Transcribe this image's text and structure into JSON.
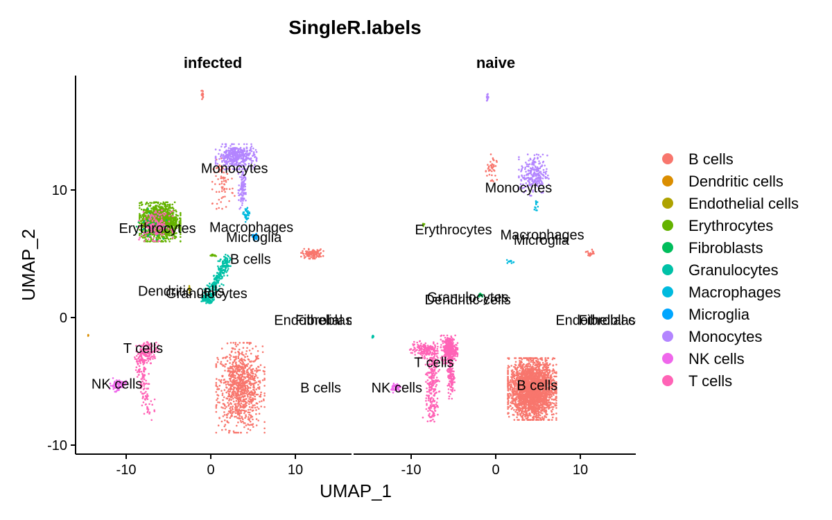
{
  "chart_data": {
    "type": "scatter",
    "title": "SingleR.labels",
    "xlabel": "UMAP_1",
    "ylabel": "UMAP_2",
    "xlim": [
      -15.5,
      16.5
    ],
    "ylim": [
      -10.3,
      19
    ],
    "xticks": [
      -10,
      0,
      10
    ],
    "yticks": [
      -10,
      0,
      10
    ],
    "grid": false,
    "legend_position": "right",
    "legend": [
      {
        "name": "B cells",
        "color": "#F8766D"
      },
      {
        "name": "Dendritic cells",
        "color": "#DB8E00"
      },
      {
        "name": "Endothelial cells",
        "color": "#AEA200"
      },
      {
        "name": "Erythrocytes",
        "color": "#64B200"
      },
      {
        "name": "Fibroblasts",
        "color": "#00BD5C"
      },
      {
        "name": "Granulocytes",
        "color": "#00C1A7"
      },
      {
        "name": "Macrophages",
        "color": "#00BADE"
      },
      {
        "name": "Microglia",
        "color": "#00A6FF"
      },
      {
        "name": "Monocytes",
        "color": "#B385FF"
      },
      {
        "name": "NK cells",
        "color": "#EF67EB"
      },
      {
        "name": "T cells",
        "color": "#FF63B6"
      }
    ],
    "panels": [
      {
        "name": "infected",
        "clusters": [
          {
            "type": "B cells",
            "center": [
              3.5,
              -5.5
            ],
            "spread": [
              2.6,
              3.2
            ],
            "count": 900,
            "shape": "blob"
          },
          {
            "type": "B cells",
            "center": [
              12.0,
              5.0
            ],
            "spread": [
              1.2,
              0.35
            ],
            "count": 120,
            "shape": "blob"
          },
          {
            "type": "B cells",
            "center": [
              -1.0,
              17.5
            ],
            "spread": [
              0.12,
              0.35
            ],
            "count": 18,
            "shape": "blob"
          },
          {
            "type": "B cells",
            "center": [
              1.5,
              10.5
            ],
            "spread": [
              1.2,
              1.8
            ],
            "count": 70,
            "shape": "blob"
          },
          {
            "type": "Monocytes",
            "center": [
              3.0,
              12.6
            ],
            "spread": [
              2.2,
              0.9
            ],
            "count": 380,
            "shape": "blob"
          },
          {
            "type": "Monocytes",
            "center": [
              3.7,
              10.0
            ],
            "spread": [
              0.4,
              1.6
            ],
            "count": 90,
            "shape": "blob"
          },
          {
            "type": "Erythrocytes",
            "center": [
              -6.0,
              7.5
            ],
            "spread": [
              2.2,
              1.4
            ],
            "count": 1400,
            "shape": "blob"
          },
          {
            "type": "Fibroblasts",
            "center": [
              -7.0,
              7.3
            ],
            "spread": [
              1.6,
              1.1
            ],
            "count": 60,
            "shape": "blob"
          },
          {
            "type": "T cells",
            "center": [
              -6.5,
              7.2
            ],
            "spread": [
              1.8,
              1.1
            ],
            "count": 160,
            "shape": "blob"
          },
          {
            "type": "Macrophages",
            "center": [
              4.2,
              8.0
            ],
            "spread": [
              0.35,
              0.6
            ],
            "count": 40,
            "shape": "blob"
          },
          {
            "type": "Microglia",
            "center": [
              5.2,
              6.3
            ],
            "spread": [
              0.35,
              0.25
            ],
            "count": 40,
            "shape": "blob"
          },
          {
            "type": "Granulocytes",
            "from": [
              2.0,
              4.5
            ],
            "to": [
              -0.5,
              1.5
            ],
            "spread": 0.45,
            "count": 260,
            "shape": "arc"
          },
          {
            "type": "Granulocytes",
            "center": [
              -0.4,
              1.4
            ],
            "spread": [
              0.8,
              0.25
            ],
            "count": 60,
            "shape": "blob"
          },
          {
            "type": "Erythrocytes",
            "center": [
              0.3,
              4.9
            ],
            "spread": [
              0.3,
              0.12
            ],
            "count": 10,
            "shape": "blob"
          },
          {
            "type": "Endothelial cells",
            "center": [
              -2.5,
              2.2
            ],
            "spread": [
              0.15,
              0.3
            ],
            "count": 10,
            "shape": "blob"
          },
          {
            "type": "Dendritic cells",
            "center": [
              -14.5,
              -1.4
            ],
            "spread": [
              0.08,
              0.08
            ],
            "count": 3,
            "shape": "blob"
          },
          {
            "type": "T cells",
            "center": [
              -7.5,
              -2.7
            ],
            "spread": [
              1.2,
              0.8
            ],
            "count": 130,
            "shape": "blob"
          },
          {
            "type": "T cells",
            "from": [
              -8.5,
              -3.0
            ],
            "to": [
              -7.3,
              -7.5
            ],
            "spread": 0.55,
            "count": 140,
            "shape": "arc"
          },
          {
            "type": "NK cells",
            "center": [
              -11.0,
              -5.3
            ],
            "spread": [
              0.9,
              0.5
            ],
            "count": 80,
            "shape": "blob"
          }
        ],
        "labels": [
          {
            "text": "Monocytes",
            "x": 2.8,
            "y": 11.7
          },
          {
            "text": "Erythrocytes",
            "x": -6.3,
            "y": 7.0
          },
          {
            "text": "Macrophages",
            "x": 4.8,
            "y": 7.1
          },
          {
            "text": "Microglia",
            "x": 5.1,
            "y": 6.3
          },
          {
            "text": "B cells",
            "x": 4.7,
            "y": 4.6
          },
          {
            "text": "Dendritic cells",
            "x": -3.5,
            "y": 2.1
          },
          {
            "text": "Granulocytes",
            "x": -0.5,
            "y": 1.9
          },
          {
            "text": "Endothelial cells",
            "x": 13.4,
            "y": -0.2
          },
          {
            "text": "Fibroblasts",
            "x": 14.0,
            "y": -0.2
          },
          {
            "text": "T cells",
            "x": -8.0,
            "y": -2.4
          },
          {
            "text": "NK cells",
            "x": -11.1,
            "y": -5.2
          },
          {
            "text": "B cells",
            "x": 13.0,
            "y": -5.5
          }
        ]
      },
      {
        "name": "naive",
        "clusters": [
          {
            "type": "B cells",
            "center": [
              4.3,
              -5.6
            ],
            "spread": [
              2.6,
              2.2
            ],
            "count": 2600,
            "shape": "blob"
          },
          {
            "type": "B cells",
            "center": [
              11.2,
              5.0
            ],
            "spread": [
              0.6,
              0.3
            ],
            "count": 20,
            "shape": "blob"
          },
          {
            "type": "B cells",
            "center": [
              -0.5,
              11.5
            ],
            "spread": [
              0.6,
              1.3
            ],
            "count": 40,
            "shape": "blob"
          },
          {
            "type": "Monocytes",
            "center": [
              -1.0,
              17.3
            ],
            "spread": [
              0.12,
              0.35
            ],
            "count": 18,
            "shape": "blob"
          },
          {
            "type": "Monocytes",
            "center": [
              4.5,
              11.2
            ],
            "spread": [
              1.6,
              1.5
            ],
            "count": 230,
            "shape": "blob"
          },
          {
            "type": "Erythrocytes",
            "center": [
              -8.5,
              7.3
            ],
            "spread": [
              0.1,
              0.2
            ],
            "count": 4,
            "shape": "blob"
          },
          {
            "type": "Macrophages",
            "center": [
              1.8,
              4.4
            ],
            "spread": [
              0.5,
              0.12
            ],
            "count": 12,
            "shape": "blob"
          },
          {
            "type": "Macrophages",
            "center": [
              4.8,
              8.6
            ],
            "spread": [
              0.25,
              0.7
            ],
            "count": 12,
            "shape": "blob"
          },
          {
            "type": "Fibroblasts",
            "center": [
              -1.8,
              1.8
            ],
            "spread": [
              0.2,
              0.15
            ],
            "count": 15,
            "shape": "blob"
          },
          {
            "type": "Granulocytes",
            "center": [
              -14.5,
              -1.5
            ],
            "spread": [
              0.1,
              0.1
            ],
            "count": 10,
            "shape": "blob"
          },
          {
            "type": "T cells",
            "center": [
              -5.5,
              -2.5
            ],
            "spread": [
              0.9,
              1.0
            ],
            "count": 320,
            "shape": "blob"
          },
          {
            "type": "T cells",
            "center": [
              -8.5,
              -2.5
            ],
            "spread": [
              1.5,
              0.6
            ],
            "count": 140,
            "shape": "blob"
          },
          {
            "type": "T cells",
            "from": [
              -7.5,
              -2.5
            ],
            "to": [
              -7.5,
              -7.8
            ],
            "spread": 0.6,
            "count": 280,
            "shape": "arc"
          },
          {
            "type": "T cells",
            "center": [
              -5.3,
              -4.6
            ],
            "spread": [
              0.4,
              1.6
            ],
            "count": 120,
            "shape": "blob"
          },
          {
            "type": "NK cells",
            "center": [
              -11.8,
              -5.5
            ],
            "spread": [
              0.5,
              0.35
            ],
            "count": 45,
            "shape": "blob"
          }
        ],
        "labels": [
          {
            "text": "Monocytes",
            "x": 2.7,
            "y": 10.2
          },
          {
            "text": "Erythrocytes",
            "x": -5.0,
            "y": 6.9
          },
          {
            "text": "Macrophages",
            "x": 5.5,
            "y": 6.5
          },
          {
            "text": "Microglia",
            "x": 5.4,
            "y": 6.1
          },
          {
            "text": "Granulocytes",
            "x": -3.3,
            "y": 1.6
          },
          {
            "text": "Dendritic cells",
            "x": -3.3,
            "y": 1.4
          },
          {
            "text": "Endothelial cells",
            "x": 13.0,
            "y": -0.2
          },
          {
            "text": "Fibroblasts",
            "x": 13.8,
            "y": -0.2
          },
          {
            "text": "T cells",
            "x": -7.3,
            "y": -3.5
          },
          {
            "text": "NK cells",
            "x": -11.7,
            "y": -5.5
          },
          {
            "text": "B cells",
            "x": 4.9,
            "y": -5.3
          }
        ]
      }
    ]
  }
}
